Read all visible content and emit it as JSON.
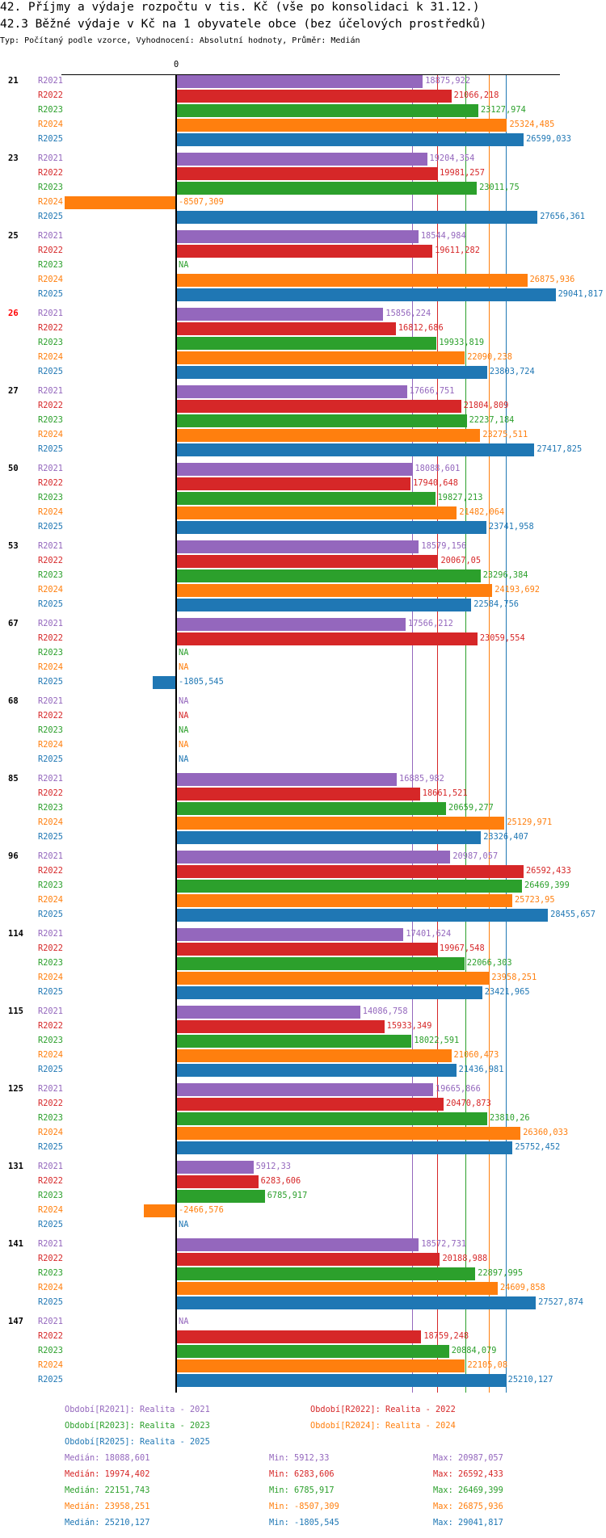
{
  "header": {
    "title": "42. Příjmy a výdaje rozpočtu v tis. Kč (vše po konsolidaci k 31.12.)",
    "subtitle": "42.3 Běžné výdaje v Kč na 1 obyvatele obce (bez účelových prostředků)",
    "info": "Typ: Počítaný podle vzorce, Vyhodnocení: Absolutní hodnoty, Průměr: Medián"
  },
  "chart_data": {
    "type": "bar",
    "orientation": "horizontal",
    "zero_label": "0",
    "na_label": "NA",
    "series": [
      {
        "key": "R2021",
        "color": "#9467bd",
        "legend": "Období[R2021]: Realita - 2021",
        "median": "18088,601",
        "min": "5912,33",
        "max": "20987,057",
        "median_value": 18088.601
      },
      {
        "key": "R2022",
        "color": "#d62728",
        "legend": "Období[R2022]: Realita - 2022",
        "median": "19974,402",
        "min": "6283,606",
        "max": "26592,433",
        "median_value": 19974.402
      },
      {
        "key": "R2023",
        "color": "#2ca02c",
        "legend": "Období[R2023]: Realita - 2023",
        "median": "22151,743",
        "min": "6785,917",
        "max": "26469,399",
        "median_value": 22151.743
      },
      {
        "key": "R2024",
        "color": "#ff7f0e",
        "legend": "Období[R2024]: Realita - 2024",
        "median": "23958,251",
        "min": "-8507,309",
        "max": "26875,936",
        "median_value": 23958.251
      },
      {
        "key": "R2025",
        "color": "#1f77b4",
        "legend": "Období[R2025]: Realita - 2025",
        "median": "25210,127",
        "min": "-1805,545",
        "max": "29041,817",
        "median_value": 25210.127
      }
    ],
    "stat_labels": {
      "median": "Medián:",
      "min": "Min:",
      "max": "Max:"
    },
    "groups": [
      {
        "label": "21",
        "highlight": false,
        "values": [
          18875.922,
          21066.218,
          23127.974,
          25324.485,
          26599.033
        ]
      },
      {
        "label": "23",
        "highlight": false,
        "values": [
          19204.354,
          19981.257,
          23011.75,
          -8507.309,
          27656.361
        ]
      },
      {
        "label": "25",
        "highlight": false,
        "values": [
          18544.984,
          19611.282,
          null,
          26875.936,
          29041.817
        ]
      },
      {
        "label": "26",
        "highlight": true,
        "values": [
          15856.224,
          16812.686,
          19933.819,
          22090.238,
          23803.724
        ]
      },
      {
        "label": "27",
        "highlight": false,
        "values": [
          17666.751,
          21804.809,
          22237.184,
          23275.511,
          27417.825
        ]
      },
      {
        "label": "50",
        "highlight": false,
        "values": [
          18088.601,
          17940.648,
          19827.213,
          21482.064,
          23741.958
        ]
      },
      {
        "label": "53",
        "highlight": false,
        "values": [
          18579.156,
          20067.05,
          23296.384,
          24193.692,
          22584.756
        ]
      },
      {
        "label": "67",
        "highlight": false,
        "values": [
          17566.212,
          23059.554,
          null,
          null,
          -1805.545
        ]
      },
      {
        "label": "68",
        "highlight": false,
        "values": [
          null,
          null,
          null,
          null,
          null
        ]
      },
      {
        "label": "85",
        "highlight": false,
        "values": [
          16885.982,
          18661.521,
          20659.277,
          25129.971,
          23326.407
        ]
      },
      {
        "label": "96",
        "highlight": false,
        "values": [
          20987.057,
          26592.433,
          26469.399,
          25723.95,
          28455.657
        ]
      },
      {
        "label": "114",
        "highlight": false,
        "values": [
          17401.624,
          19967.548,
          22066.303,
          23958.251,
          23421.965
        ]
      },
      {
        "label": "115",
        "highlight": false,
        "values": [
          14086.758,
          15933.349,
          18022.591,
          21060.473,
          21436.981
        ]
      },
      {
        "label": "125",
        "highlight": false,
        "values": [
          19665.866,
          20470.873,
          23810.26,
          26360.033,
          25752.452
        ]
      },
      {
        "label": "131",
        "highlight": false,
        "values": [
          5912.33,
          6283.606,
          6785.917,
          -2466.576,
          null
        ]
      },
      {
        "label": "141",
        "highlight": false,
        "values": [
          18572.731,
          20188.988,
          22897.995,
          24609.858,
          27527.874
        ]
      },
      {
        "label": "147",
        "highlight": false,
        "values": [
          null,
          18759.248,
          20884.079,
          22105.08,
          25210.127
        ]
      }
    ]
  }
}
